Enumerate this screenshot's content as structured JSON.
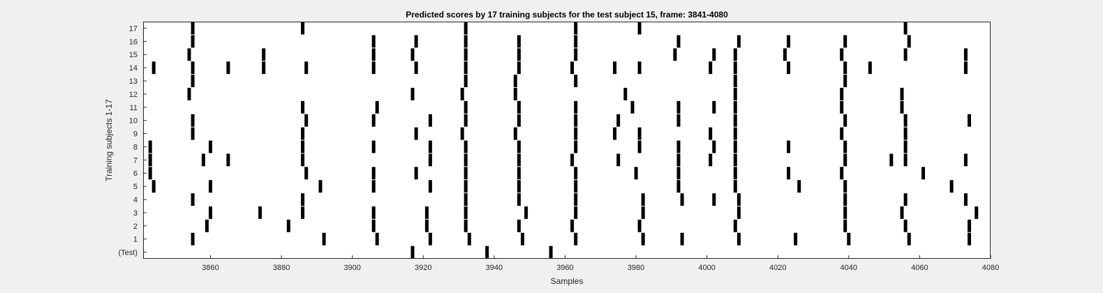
{
  "chart_data": {
    "type": "raster",
    "title": "Predicted scores by 17 training subjects for the test subject 15, frame: 3841-4080",
    "xlabel": "Samples",
    "ylabel": "Training subjects 1-17",
    "xlim": [
      3841,
      4080
    ],
    "xticks": [
      3860,
      3880,
      3900,
      3920,
      3940,
      3960,
      3980,
      4000,
      4020,
      4040,
      4060,
      4080
    ],
    "ytick_labels": [
      "(Test)",
      "1",
      "2",
      "3",
      "4",
      "5",
      "6",
      "7",
      "8",
      "9",
      "10",
      "11",
      "12",
      "13",
      "14",
      "15",
      "16",
      "17"
    ],
    "grid": false,
    "series": [
      {
        "name": "(Test)",
        "x": [
          3917,
          3938,
          3956
        ]
      },
      {
        "name": "1",
        "x": [
          3855,
          3892,
          3907,
          3922,
          3933,
          3948,
          3963,
          3982,
          3993,
          4009,
          4025,
          4040,
          4057,
          4074
        ]
      },
      {
        "name": "2",
        "x": [
          3859,
          3882,
          3906,
          3921,
          3932,
          3947,
          3962,
          3981,
          4008,
          4039,
          4056,
          4074
        ]
      },
      {
        "name": "3",
        "x": [
          3860,
          3874,
          3886,
          3906,
          3921,
          3932,
          3949,
          3963,
          3982,
          4009,
          4039,
          4055,
          4076
        ]
      },
      {
        "name": "4",
        "x": [
          3855,
          3886,
          3932,
          3947,
          3963,
          3982,
          3993,
          4002,
          4009,
          4039,
          4056,
          4073
        ]
      },
      {
        "name": "5",
        "x": [
          3844,
          3860,
          3891,
          3906,
          3922,
          3932,
          3947,
          3963,
          3992,
          4008,
          4026,
          4039,
          4069
        ]
      },
      {
        "name": "6",
        "x": [
          3843,
          3887,
          3906,
          3918,
          3932,
          3947,
          3963,
          3980,
          3992,
          4008,
          4023,
          4038,
          4061
        ]
      },
      {
        "name": "7",
        "x": [
          3843,
          3858,
          3865,
          3886,
          3922,
          3932,
          3947,
          3962,
          3975,
          3992,
          4001,
          4008,
          4039,
          4052,
          4056,
          4073
        ]
      },
      {
        "name": "8",
        "x": [
          3843,
          3860,
          3886,
          3906,
          3922,
          3932,
          3947,
          3963,
          3981,
          3992,
          4002,
          4008,
          4023,
          4039,
          4056
        ]
      },
      {
        "name": "9",
        "x": [
          3855,
          3886,
          3918,
          3931,
          3946,
          3963,
          3974,
          3981,
          4001,
          4008,
          4038,
          4056
        ]
      },
      {
        "name": "10",
        "x": [
          3855,
          3887,
          3906,
          3922,
          3932,
          3947,
          3963,
          3975,
          3992,
          4008,
          4039,
          4056,
          4074
        ]
      },
      {
        "name": "11",
        "x": [
          3886,
          3907,
          3932,
          3947,
          3963,
          3979,
          3992,
          4002,
          4008,
          4038,
          4055
        ]
      },
      {
        "name": "12",
        "x": [
          3854,
          3917,
          3931,
          3946,
          3977,
          4008,
          4038,
          4055
        ]
      },
      {
        "name": "13",
        "x": [
          3855,
          3932,
          3946,
          3963,
          4008,
          4039
        ]
      },
      {
        "name": "14",
        "x": [
          3844,
          3855,
          3865,
          3875,
          3887,
          3906,
          3918,
          3932,
          3947,
          3962,
          3974,
          3981,
          4001,
          4008,
          4023,
          4039,
          4046,
          4073
        ]
      },
      {
        "name": "15",
        "x": [
          3854,
          3875,
          3906,
          3917,
          3932,
          3947,
          3963,
          3991,
          4002,
          4008,
          4022,
          4038,
          4056,
          4073
        ]
      },
      {
        "name": "16",
        "x": [
          3855,
          3906,
          3918,
          3932,
          3947,
          3963,
          3992,
          4009,
          4023,
          4039,
          4057
        ]
      },
      {
        "name": "17",
        "x": [
          3855,
          3886,
          3932,
          3963,
          3981,
          4056
        ]
      }
    ]
  },
  "colors": {
    "figure_background": "#f0f0f0",
    "axes_background": "#ffffff",
    "marks": "#000000",
    "text": "#262626"
  }
}
